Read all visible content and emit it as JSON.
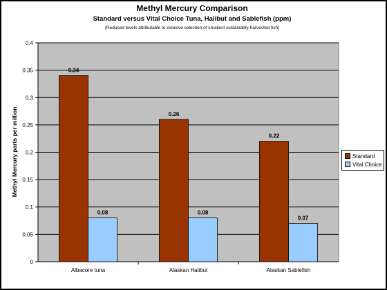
{
  "chart_data": {
    "type": "bar",
    "title": "Methyl Mercury Comparison",
    "subtitle": "Standard versus Vital Choice Tuna, Halibut and Sablefish (ppm)",
    "note": "(Reduced levels attributable to exlusive selection of smallest sustainably-harvested fish)",
    "ylabel": "Methyl Mercury parts per million",
    "xlabel": "",
    "categories": [
      "Albacore tuna",
      "Alaskan Halibut",
      "Alaskan Sablefish"
    ],
    "ylim": [
      0,
      0.4
    ],
    "yticks": [
      "0",
      "0.05",
      "0.1",
      "0.15",
      "0.2",
      "0.25",
      "0.3",
      "0.35",
      "0.4"
    ],
    "grid": true,
    "legend_position": "right",
    "series": [
      {
        "name": "Standard",
        "color": "#993300",
        "values": [
          0.34,
          0.26,
          0.22
        ],
        "labels": [
          "0.34",
          "0.26",
          "0.22"
        ]
      },
      {
        "name": "Vital Choice",
        "color": "#99CCFF",
        "values": [
          0.08,
          0.08,
          0.07
        ],
        "labels": [
          "0.08",
          "0.08",
          "0.07"
        ]
      }
    ],
    "plot_background": "#c0c0c0"
  }
}
